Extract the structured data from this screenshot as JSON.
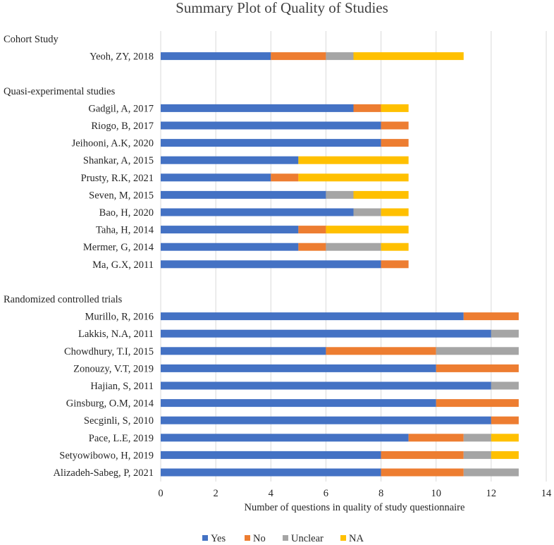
{
  "chart_data": {
    "type": "bar",
    "orientation": "horizontal",
    "stacked": true,
    "title": "Summary Plot of Quality of Studies",
    "xlabel": "Number of questions in quality of study questionnaire",
    "ylabel": "",
    "xlim": [
      0,
      14
    ],
    "xticks": [
      0,
      2,
      4,
      6,
      8,
      10,
      12,
      14
    ],
    "grid": true,
    "legend_position": "bottom",
    "rows": [
      {
        "label": "Cohort Study",
        "kind": "group"
      },
      {
        "label": "Yeoh, ZY, 2018",
        "kind": "study"
      },
      {
        "label": "",
        "kind": "spacer"
      },
      {
        "label": "Quasi-experimental studies",
        "kind": "group"
      },
      {
        "label": "Gadgil, A, 2017",
        "kind": "study"
      },
      {
        "label": "Riogo, B, 2017",
        "kind": "study"
      },
      {
        "label": "Jeihooni, A.K, 2020",
        "kind": "study"
      },
      {
        "label": "Shankar, A, 2015",
        "kind": "study"
      },
      {
        "label": "Prusty, R.K, 2021",
        "kind": "study"
      },
      {
        "label": "Seven, M, 2015",
        "kind": "study"
      },
      {
        "label": "Bao, H, 2020",
        "kind": "study"
      },
      {
        "label": "Taha, H, 2014",
        "kind": "study"
      },
      {
        "label": "Mermer, G, 2014",
        "kind": "study"
      },
      {
        "label": "Ma, G.X, 2011",
        "kind": "study"
      },
      {
        "label": "",
        "kind": "spacer"
      },
      {
        "label": "Randomized controlled trials",
        "kind": "group"
      },
      {
        "label": "Murillo, R, 2016",
        "kind": "study"
      },
      {
        "label": "Lakkis, N.A, 2011",
        "kind": "study"
      },
      {
        "label": "Chowdhury, T.I, 2015",
        "kind": "study"
      },
      {
        "label": "Zonouzy, V.T, 2019",
        "kind": "study"
      },
      {
        "label": "Hajian, S, 2011",
        "kind": "study"
      },
      {
        "label": "Ginsburg, O.M, 2014",
        "kind": "study"
      },
      {
        "label": "Secginli, S, 2010",
        "kind": "study"
      },
      {
        "label": "Pace, L.E, 2019",
        "kind": "study"
      },
      {
        "label": "Setyowibowo, H, 2019",
        "kind": "study"
      },
      {
        "label": "Alizadeh-Sabeg, P, 2021",
        "kind": "study"
      }
    ],
    "series": [
      {
        "name": "Yes",
        "color": "#4472C4",
        "values": [
          0,
          4,
          0,
          0,
          7,
          8,
          8,
          5,
          4,
          6,
          7,
          5,
          5,
          8,
          0,
          0,
          11,
          12,
          6,
          10,
          12,
          10,
          12,
          9,
          8,
          8
        ]
      },
      {
        "name": "No",
        "color": "#ED7D31",
        "values": [
          0,
          2,
          0,
          0,
          1,
          1,
          1,
          0,
          1,
          0,
          0,
          1,
          1,
          1,
          0,
          0,
          2,
          0,
          4,
          3,
          0,
          3,
          1,
          2,
          3,
          3
        ]
      },
      {
        "name": "Unclear",
        "color": "#A5A5A5",
        "values": [
          0,
          1,
          0,
          0,
          0,
          0,
          0,
          0,
          0,
          1,
          1,
          0,
          2,
          0,
          0,
          0,
          0,
          1,
          3,
          0,
          1,
          0,
          0,
          1,
          1,
          2
        ]
      },
      {
        "name": "NA",
        "color": "#FFC000",
        "values": [
          0,
          4,
          0,
          0,
          1,
          0,
          0,
          4,
          4,
          2,
          1,
          3,
          1,
          0,
          0,
          0,
          0,
          0,
          0,
          0,
          0,
          0,
          0,
          1,
          1,
          0
        ]
      }
    ]
  }
}
